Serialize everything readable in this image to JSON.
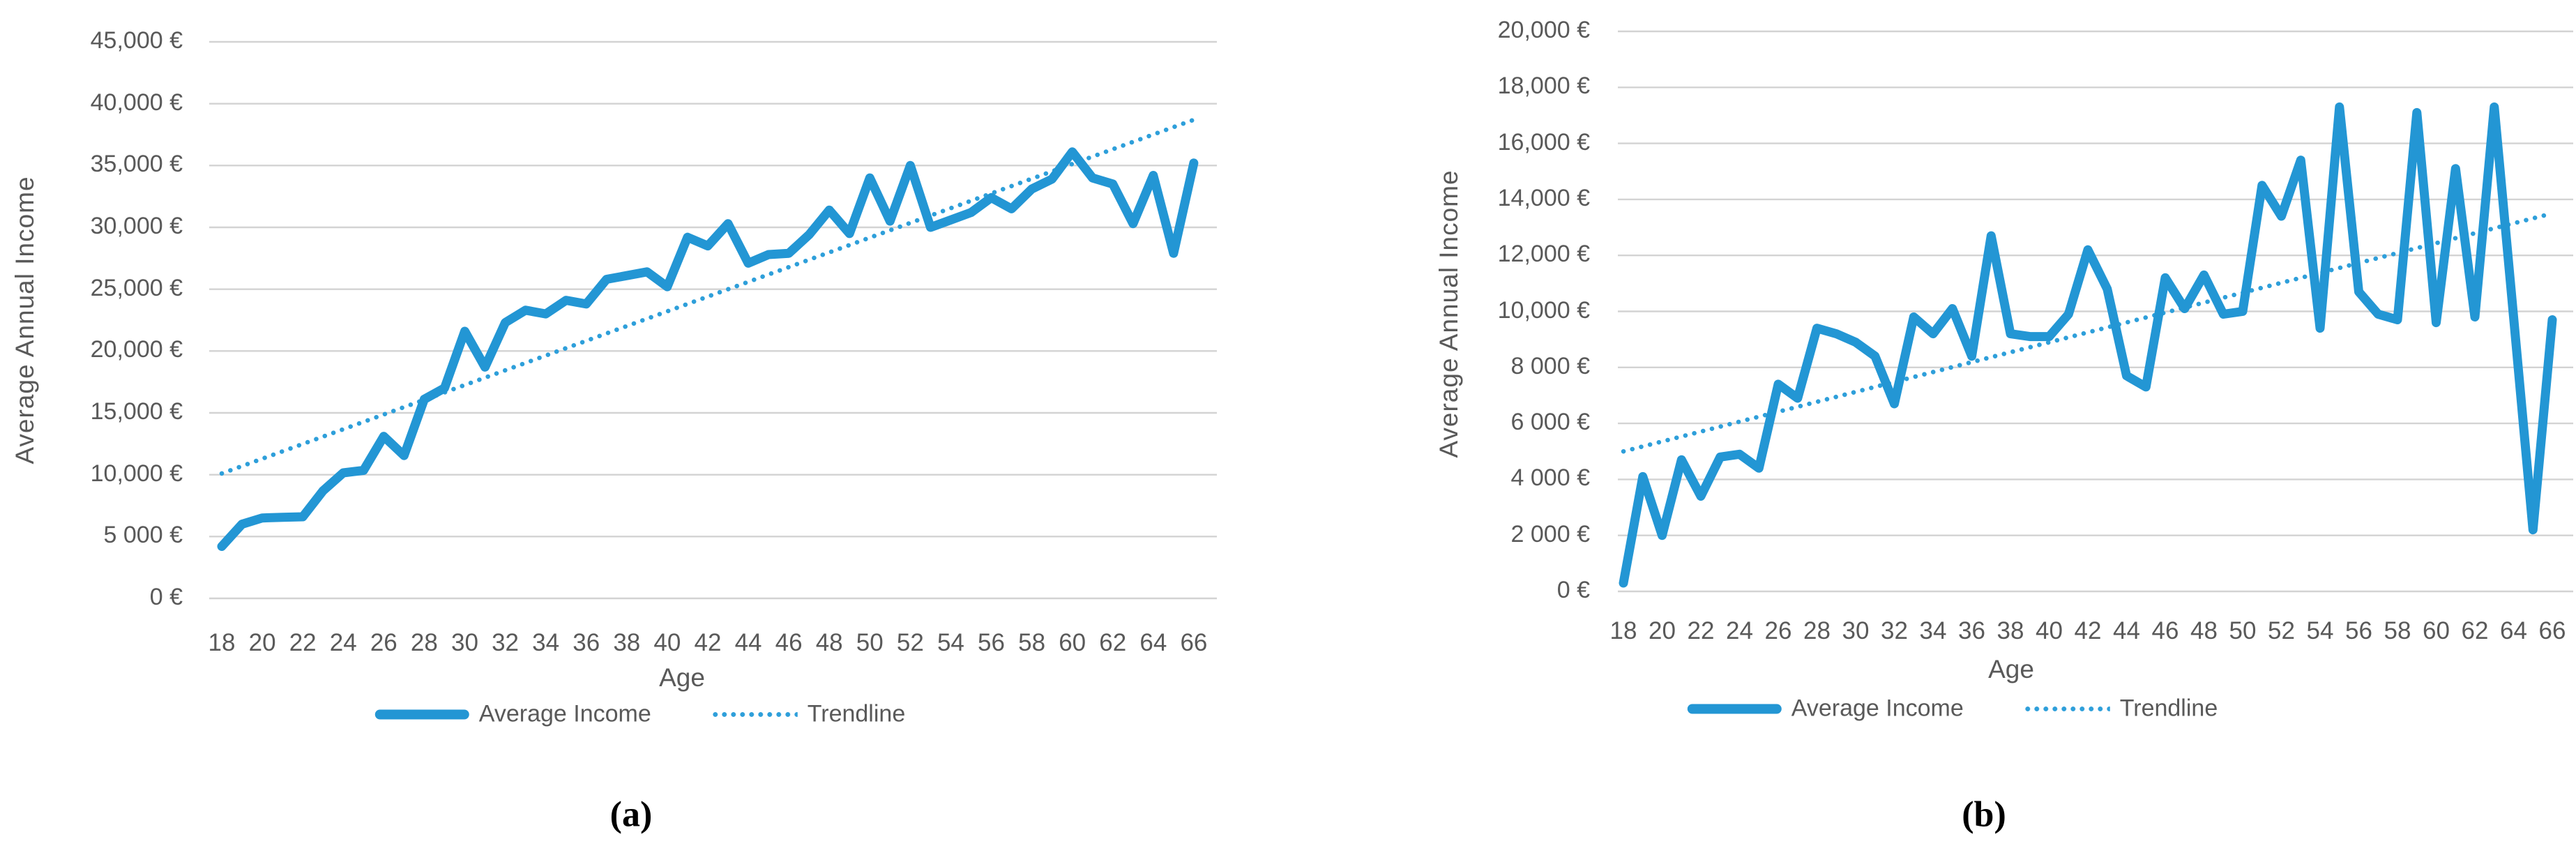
{
  "figure": {
    "captions": [
      "(a)",
      "(b)"
    ],
    "colors": {
      "series_blue": "#2396D4",
      "trendline_blue": "#2E9FDA",
      "gridline_gray": "#D3D3D3",
      "text_gray": "#595959",
      "caption_black": "#000000"
    }
  },
  "chart_data": [
    {
      "id": "a",
      "type": "line",
      "title": "",
      "xlabel": "Age",
      "ylabel": "Average Annual Income",
      "legend_position": "bottom",
      "grid": true,
      "ylim": [
        0,
        45000
      ],
      "ytick_step": 5000,
      "y_tick_values": [
        0,
        5000,
        10000,
        15000,
        20000,
        25000,
        30000,
        35000,
        40000,
        45000
      ],
      "y_tick_labels": [
        "0 €",
        "5 000 €",
        "10,000 €",
        "15,000 €",
        "20,000 €",
        "25,000 €",
        "30,000 €",
        "35,000 €",
        "40,000 €",
        "45,000 €"
      ],
      "x_tick_labels": [
        "18",
        "20",
        "22",
        "24",
        "26",
        "28",
        "30",
        "32",
        "34",
        "36",
        "38",
        "40",
        "42",
        "44",
        "46",
        "48",
        "50",
        "52",
        "54",
        "56",
        "58",
        "60",
        "62",
        "64",
        "66"
      ],
      "x": [
        18,
        19,
        20,
        21,
        22,
        23,
        24,
        25,
        26,
        27,
        28,
        29,
        30,
        31,
        32,
        33,
        34,
        35,
        36,
        37,
        38,
        39,
        40,
        41,
        42,
        43,
        44,
        45,
        46,
        47,
        48,
        49,
        50,
        51,
        52,
        53,
        54,
        55,
        56,
        57,
        58,
        59,
        60,
        61,
        62,
        63,
        64,
        65,
        66
      ],
      "series": [
        {
          "name": "Average Income",
          "values": [
            4200,
            6000,
            6500,
            6550,
            6600,
            8700,
            10150,
            10350,
            13100,
            11550,
            16100,
            17000,
            21600,
            18700,
            22300,
            23300,
            23000,
            24100,
            23800,
            25800,
            26100,
            26400,
            25200,
            29200,
            28500,
            30300,
            27100,
            27800,
            27900,
            29400,
            31400,
            29500,
            34000,
            30500,
            35000,
            30000,
            30600,
            31200,
            32400,
            31500,
            33100,
            33900,
            36100,
            34000,
            33500,
            30300,
            34200,
            27900,
            35200
          ]
        },
        {
          "name": "Trendline",
          "style": "dotted",
          "linear_start": 10100,
          "linear_end": 38700
        }
      ]
    },
    {
      "id": "b",
      "type": "line",
      "title": "",
      "xlabel": "Age",
      "ylabel": "Average Annual Income",
      "legend_position": "bottom",
      "grid": true,
      "ylim": [
        0,
        20000
      ],
      "ytick_step": 2000,
      "y_tick_values": [
        0,
        2000,
        4000,
        6000,
        8000,
        10000,
        12000,
        14000,
        16000,
        18000,
        20000
      ],
      "y_tick_labels": [
        "0 €",
        "2 000 €",
        "4 000 €",
        "6 000 €",
        "8 000 €",
        "10,000 €",
        "12,000 €",
        "14,000 €",
        "16,000 €",
        "18,000 €",
        "20,000 €"
      ],
      "x_tick_labels": [
        "18",
        "20",
        "22",
        "24",
        "26",
        "28",
        "30",
        "32",
        "34",
        "36",
        "38",
        "40",
        "42",
        "44",
        "46",
        "48",
        "50",
        "52",
        "54",
        "56",
        "58",
        "60",
        "62",
        "64",
        "66"
      ],
      "x": [
        18,
        19,
        20,
        21,
        22,
        23,
        24,
        25,
        26,
        27,
        28,
        29,
        30,
        31,
        32,
        33,
        34,
        35,
        36,
        37,
        38,
        39,
        40,
        41,
        42,
        43,
        44,
        45,
        46,
        47,
        48,
        49,
        50,
        51,
        52,
        53,
        54,
        55,
        56,
        57,
        58,
        59,
        60,
        61,
        62,
        63,
        64,
        65,
        66
      ],
      "series": [
        {
          "name": "Average Income",
          "values": [
            300,
            4100,
            2000,
            4700,
            3400,
            4800,
            4900,
            4400,
            7400,
            6900,
            9400,
            9200,
            8900,
            8400,
            6700,
            9800,
            9200,
            10100,
            8400,
            12700,
            9200,
            9100,
            9100,
            9900,
            12200,
            10800,
            7700,
            7300,
            11200,
            10100,
            11300,
            9900,
            10000,
            14500,
            13400,
            15400,
            9400,
            17300,
            10700,
            9900,
            9700,
            17100,
            9600,
            15100,
            9800,
            17300,
            9800,
            2200,
            9700
          ]
        },
        {
          "name": "Trendline",
          "style": "dotted",
          "linear_start": 5000,
          "linear_end": 13500
        }
      ]
    }
  ]
}
